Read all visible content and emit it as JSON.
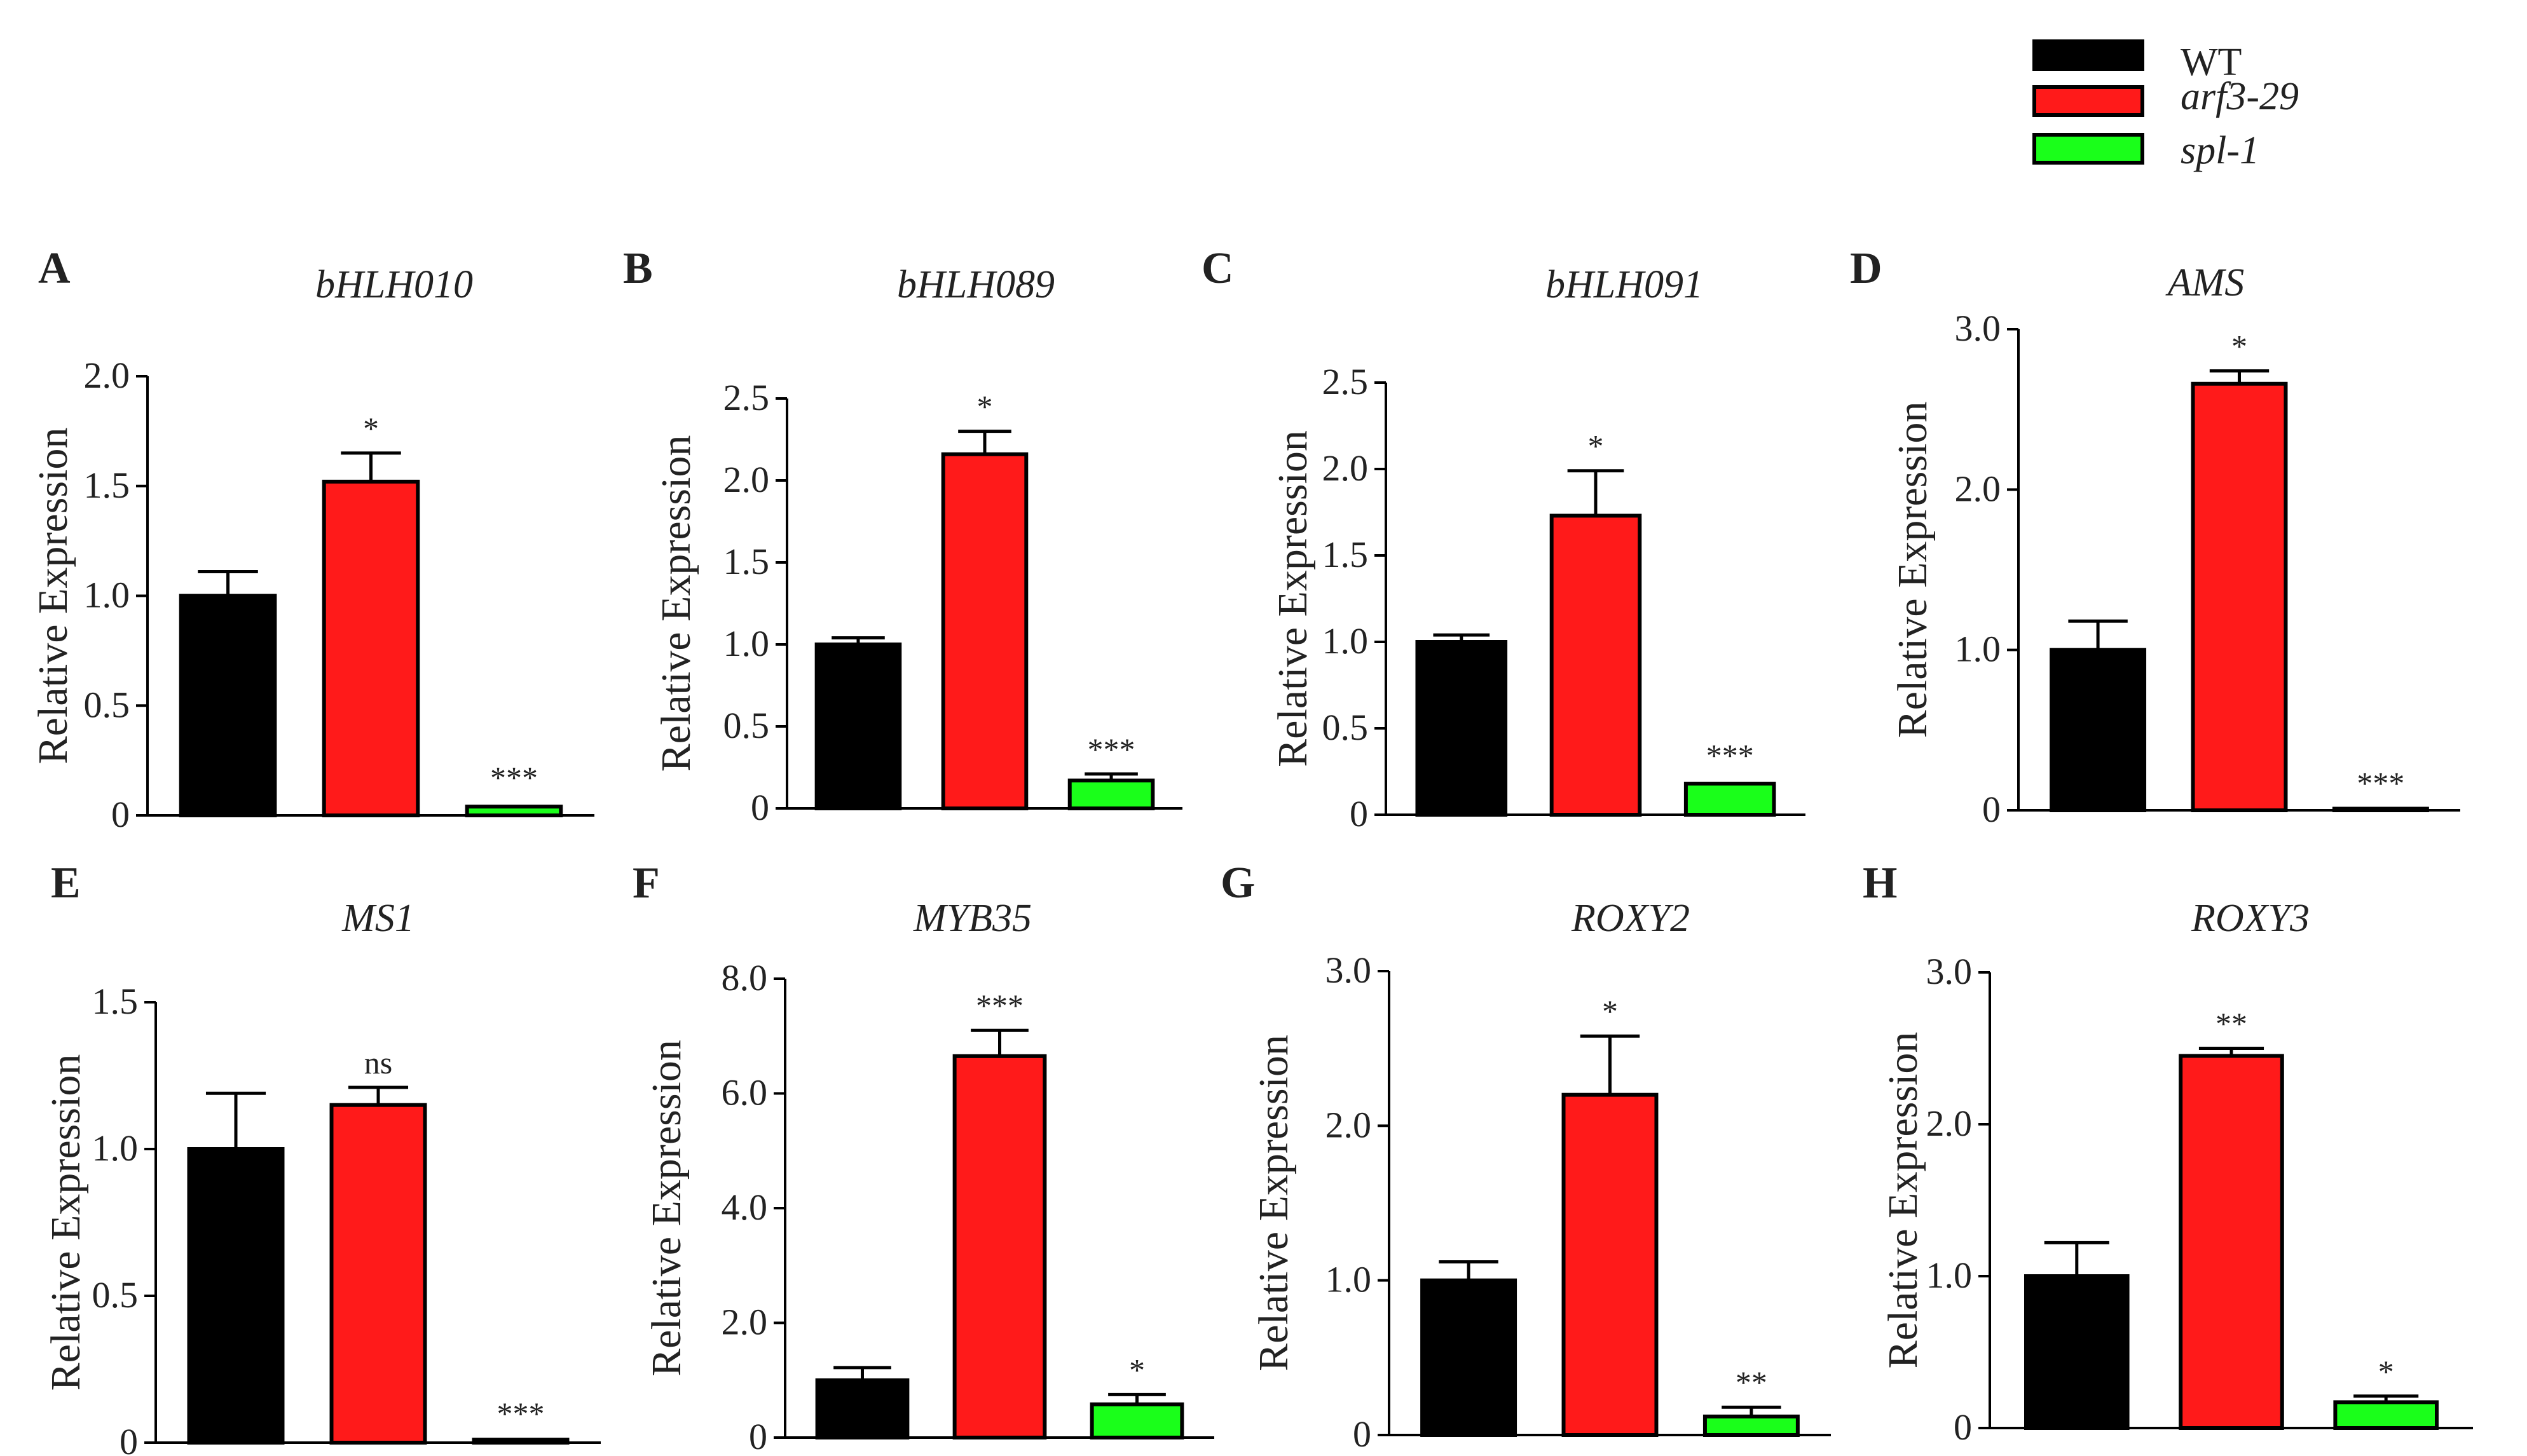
{
  "legend": {
    "items": [
      {
        "label": "WT",
        "color": "#000000",
        "italic": false
      },
      {
        "label": "arf3-29",
        "color": "#ff1a1a",
        "italic": true
      },
      {
        "label": "spl-1",
        "color": "#1aff1a",
        "italic": true
      }
    ]
  },
  "chart_data": [
    {
      "type": "bar",
      "panel": "A",
      "title": "bHLH010",
      "ylabel": "Relative Expression",
      "ylim": [
        0,
        2.0
      ],
      "yticks": [
        "0",
        "0.5",
        "1.0",
        "1.5",
        "2.0"
      ],
      "ytick_values": [
        0,
        0.5,
        1.0,
        1.5,
        2.0
      ],
      "categories": [
        "WT",
        "arf3-29",
        "spl-1"
      ],
      "values": [
        1.0,
        1.52,
        0.04
      ],
      "errors": [
        0.11,
        0.13,
        0.02
      ],
      "significance": [
        "",
        "*",
        "***"
      ]
    },
    {
      "type": "bar",
      "panel": "B",
      "title": "bHLH089",
      "ylabel": "Relative Expression",
      "ylim": [
        0,
        2.5
      ],
      "yticks": [
        "0",
        "0.5",
        "1.0",
        "1.5",
        "2.0",
        "2.5"
      ],
      "ytick_values": [
        0,
        0.5,
        1.0,
        1.5,
        2.0,
        2.5
      ],
      "categories": [
        "WT",
        "arf3-29",
        "spl-1"
      ],
      "values": [
        1.0,
        2.16,
        0.17
      ],
      "errors": [
        0.04,
        0.14,
        0.04
      ],
      "significance": [
        "",
        "*",
        "***"
      ]
    },
    {
      "type": "bar",
      "panel": "C",
      "title": "bHLH091",
      "ylabel": "Relative Expression",
      "ylim": [
        0,
        2.5
      ],
      "yticks": [
        "0",
        "0.5",
        "1.0",
        "1.5",
        "2.0",
        "2.5"
      ],
      "ytick_values": [
        0,
        0.5,
        1.0,
        1.5,
        2.0,
        2.5
      ],
      "categories": [
        "WT",
        "arf3-29",
        "spl-1"
      ],
      "values": [
        1.0,
        1.73,
        0.18
      ],
      "errors": [
        0.04,
        0.26,
        0.02
      ],
      "significance": [
        "",
        "*",
        "***"
      ]
    },
    {
      "type": "bar",
      "panel": "D",
      "title": "AMS",
      "ylabel": "Relative Expression",
      "ylim": [
        0,
        3.0
      ],
      "yticks": [
        "0",
        "1.0",
        "2.0",
        "3.0"
      ],
      "ytick_values": [
        0,
        1.0,
        2.0,
        3.0
      ],
      "categories": [
        "WT",
        "arf3-29",
        "spl-1"
      ],
      "values": [
        1.0,
        2.66,
        0.01
      ],
      "errors": [
        0.18,
        0.08,
        0.005
      ],
      "significance": [
        "",
        "*",
        "***"
      ]
    },
    {
      "type": "bar",
      "panel": "E",
      "title": "MS1",
      "ylabel": "Relative Expression",
      "ylim": [
        0,
        1.5
      ],
      "yticks": [
        "0",
        "0.5",
        "1.0",
        "1.5"
      ],
      "ytick_values": [
        0,
        0.5,
        1.0,
        1.5
      ],
      "categories": [
        "WT",
        "arf3-29",
        "spl-1"
      ],
      "values": [
        1.0,
        1.15,
        0.01
      ],
      "errors": [
        0.19,
        0.06,
        0.005
      ],
      "significance": [
        "",
        "ns",
        "***"
      ]
    },
    {
      "type": "bar",
      "panel": "F",
      "title": "MYB35",
      "ylabel": "Relative Expression",
      "ylim": [
        0,
        8.0
      ],
      "yticks": [
        "0",
        "2.0",
        "4.0",
        "6.0",
        "8.0"
      ],
      "ytick_values": [
        0,
        2.0,
        4.0,
        6.0,
        8.0
      ],
      "categories": [
        "WT",
        "arf3-29",
        "spl-1"
      ],
      "values": [
        1.0,
        6.65,
        0.58
      ],
      "errors": [
        0.22,
        0.45,
        0.17
      ],
      "significance": [
        "",
        "***",
        "*"
      ]
    },
    {
      "type": "bar",
      "panel": "G",
      "title": "ROXY2",
      "ylabel": "Relative Expression",
      "ylim": [
        0,
        3.0
      ],
      "yticks": [
        "0",
        "1.0",
        "2.0",
        "3.0"
      ],
      "ytick_values": [
        0,
        1.0,
        2.0,
        3.0
      ],
      "categories": [
        "WT",
        "arf3-29",
        "spl-1"
      ],
      "values": [
        1.0,
        2.2,
        0.12
      ],
      "errors": [
        0.12,
        0.38,
        0.06
      ],
      "significance": [
        "",
        "*",
        "**"
      ]
    },
    {
      "type": "bar",
      "panel": "H",
      "title": "ROXY3",
      "ylabel": "Relative Expression",
      "ylim": [
        0,
        3.0
      ],
      "yticks": [
        "0",
        "1.0",
        "2.0",
        "3.0"
      ],
      "ytick_values": [
        0,
        1.0,
        2.0,
        3.0
      ],
      "categories": [
        "WT",
        "arf3-29",
        "spl-1"
      ],
      "values": [
        1.0,
        2.45,
        0.17
      ],
      "errors": [
        0.22,
        0.05,
        0.04
      ],
      "significance": [
        "",
        "**",
        "*"
      ]
    }
  ]
}
